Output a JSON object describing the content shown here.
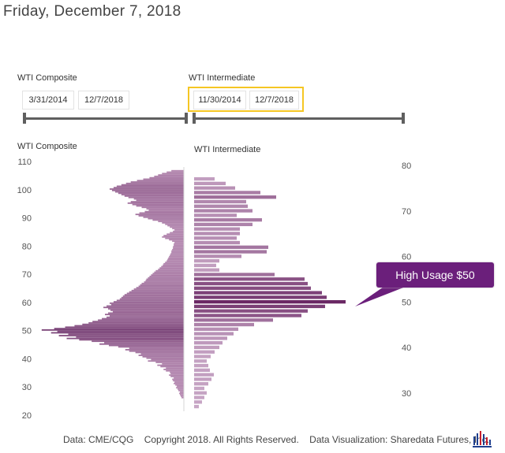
{
  "header": {
    "date": "Friday, December 7, 2018"
  },
  "slicers": {
    "composite": {
      "label": "WTI Composite",
      "start": "3/31/2014",
      "end": "12/7/2018"
    },
    "intermediate": {
      "label": "WTI Intermediate",
      "start": "11/30/2014",
      "end": "12/7/2018"
    }
  },
  "colors": {
    "composite_bar": "#b88db4",
    "composite_bar_dark": "#7a4377",
    "intermediate_bar": "#c9a8c7",
    "intermediate_bar_dark": "#6a2864",
    "callout": "#6b1f7b",
    "highlight": "#f5c623"
  },
  "callout": {
    "text": "High Usage $50"
  },
  "footer": {
    "data_source": "Data: CME/CQG",
    "copyright": "Copyright 2018. All Rights Reserved.",
    "visualization": "Data Visualization: Sharedata Futures, Inc."
  },
  "chart_data": [
    {
      "type": "bar",
      "orientation": "horizontal",
      "title": "WTI Composite",
      "ylim": [
        20,
        110
      ],
      "yticks": [
        20,
        30,
        40,
        50,
        60,
        70,
        80,
        90,
        100,
        110
      ],
      "price_step": 0.5,
      "prices": [
        26.0,
        26.5,
        27.0,
        27.5,
        28.0,
        28.5,
        29.0,
        29.5,
        30.0,
        30.5,
        31.0,
        31.5,
        32.0,
        32.5,
        33.0,
        33.5,
        34.0,
        34.5,
        35.0,
        35.5,
        36.0,
        36.5,
        37.0,
        37.5,
        38.0,
        38.5,
        39.0,
        39.5,
        40.0,
        40.5,
        41.0,
        41.5,
        42.0,
        42.5,
        43.0,
        43.5,
        44.0,
        44.5,
        45.0,
        45.5,
        46.0,
        46.5,
        47.0,
        47.5,
        48.0,
        48.5,
        49.0,
        49.5,
        50.0,
        50.5,
        51.0,
        51.5,
        52.0,
        52.5,
        53.0,
        53.5,
        54.0,
        54.5,
        55.0,
        55.5,
        56.0,
        56.5,
        57.0,
        57.5,
        58.0,
        58.5,
        59.0,
        59.5,
        60.0,
        60.5,
        61.0,
        61.5,
        62.0,
        62.5,
        63.0,
        63.5,
        64.0,
        64.5,
        65.0,
        65.5,
        66.0,
        66.5,
        67.0,
        67.5,
        68.0,
        68.5,
        69.0,
        69.5,
        70.0,
        70.5,
        71.0,
        71.5,
        72.0,
        72.5,
        73.0,
        73.5,
        74.0,
        74.5,
        75.0,
        75.5,
        76.0,
        76.5,
        77.0,
        77.5,
        78.0,
        78.5,
        79.0,
        79.5,
        80.0,
        80.5,
        81.0,
        81.5,
        82.0,
        82.5,
        83.0,
        83.5,
        84.0,
        84.5,
        85.0,
        85.5,
        86.0,
        86.5,
        87.0,
        87.5,
        88.0,
        88.5,
        89.0,
        89.5,
        90.0,
        90.5,
        91.0,
        91.5,
        92.0,
        92.5,
        93.0,
        93.5,
        94.0,
        94.5,
        95.0,
        95.5,
        96.0,
        96.5,
        97.0,
        97.5,
        98.0,
        98.5,
        99.0,
        99.5,
        100.0,
        100.5,
        101.0,
        101.5,
        102.0,
        102.5,
        103.0,
        103.5,
        104.0,
        104.5,
        105.0,
        105.5,
        106.0,
        106.5,
        107.0
      ],
      "values": [
        3,
        4,
        5,
        6,
        5,
        7,
        8,
        10,
        9,
        11,
        13,
        12,
        14,
        15,
        13,
        17,
        19,
        17,
        18,
        23,
        26,
        23,
        30,
        34,
        28,
        36,
        46,
        42,
        48,
        53,
        58,
        55,
        62,
        70,
        75,
        70,
        84,
        96,
        108,
        102,
        118,
        134,
        150,
        138,
        160,
        148,
        170,
        162,
        182,
        166,
        152,
        140,
        130,
        122,
        117,
        110,
        105,
        99,
        95,
        101,
        97,
        91,
        94,
        97,
        103,
        99,
        93,
        95,
        90,
        86,
        82,
        80,
        78,
        76,
        73,
        70,
        67,
        64,
        61,
        58,
        56,
        54,
        51,
        49,
        48,
        46,
        44,
        42,
        40,
        38,
        36,
        33,
        31,
        29,
        27,
        26,
        24,
        22,
        21,
        20,
        19,
        18,
        17,
        16,
        16,
        15,
        14,
        14,
        13,
        13,
        12,
        15,
        19,
        24,
        28,
        26,
        22,
        18,
        14,
        12,
        15,
        18,
        21,
        24,
        28,
        33,
        40,
        46,
        52,
        58,
        62,
        57,
        50,
        45,
        48,
        54,
        61,
        66,
        72,
        68,
        61,
        64,
        71,
        76,
        80,
        84,
        88,
        92,
        95,
        90,
        86,
        80,
        74,
        68,
        60,
        52,
        44,
        38,
        33,
        28,
        22,
        16
      ]
    },
    {
      "type": "bar",
      "orientation": "horizontal",
      "title": "WTI Intermediate",
      "ylim": [
        25,
        80
      ],
      "yticks": [
        30,
        40,
        50,
        60,
        70,
        80
      ],
      "prices": [
        27,
        28,
        29,
        30,
        31,
        32,
        33,
        34,
        35,
        36,
        37,
        38,
        39,
        40,
        41,
        42,
        43,
        44,
        45,
        46,
        47,
        48,
        49,
        50,
        51,
        52,
        53,
        54,
        55,
        56,
        57,
        58,
        59,
        60,
        61,
        62,
        63,
        64,
        65,
        66,
        67,
        68,
        69,
        70,
        71,
        72,
        73,
        74,
        75,
        76,
        77
      ],
      "values": [
        6,
        10,
        13,
        16,
        13,
        18,
        22,
        25,
        20,
        18,
        16,
        21,
        26,
        32,
        36,
        42,
        50,
        56,
        76,
        100,
        136,
        144,
        166,
        192,
        168,
        162,
        148,
        144,
        140,
        102,
        32,
        28,
        32,
        60,
        92,
        94,
        58,
        54,
        58,
        58,
        74,
        86,
        54,
        74,
        68,
        66,
        104,
        84,
        52,
        40,
        26
      ]
    }
  ]
}
